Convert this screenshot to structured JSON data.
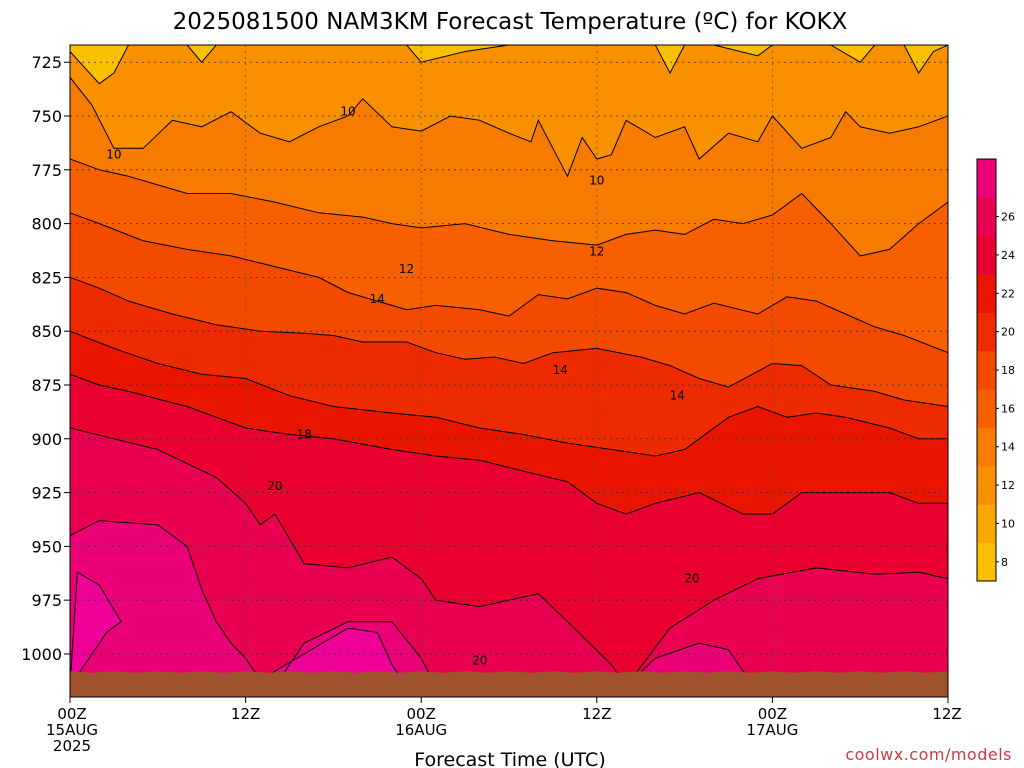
{
  "chart_data": {
    "type": "contour",
    "title": "2025081500 NAM3KM Forecast Temperature (ºC) for KOKX",
    "xlabel": "Forecast Time (UTC)",
    "ylabel": "",
    "x_ticks": [
      {
        "hour": 0,
        "lines": [
          "00Z",
          "15AUG",
          "2025"
        ]
      },
      {
        "hour": 12,
        "lines": [
          "12Z"
        ]
      },
      {
        "hour": 24,
        "lines": [
          "00Z",
          "16AUG"
        ]
      },
      {
        "hour": 36,
        "lines": [
          "12Z"
        ]
      },
      {
        "hour": 48,
        "lines": [
          "00Z",
          "17AUG"
        ]
      },
      {
        "hour": 60,
        "lines": [
          "12Z"
        ]
      }
    ],
    "xlim": [
      0,
      60
    ],
    "y_ticks": [
      725,
      750,
      775,
      800,
      825,
      850,
      875,
      900,
      925,
      950,
      975,
      1000
    ],
    "ylim": [
      717,
      1020
    ],
    "y_axis": "pressure (hPa), inverted",
    "surface_pressure_hPa": 1008,
    "colorbar": {
      "ticks": [
        8,
        10,
        12,
        14,
        16,
        18,
        20,
        22,
        24,
        26
      ],
      "levels": [
        7,
        9,
        11,
        13,
        15,
        17,
        19,
        21,
        23,
        25,
        27,
        29
      ],
      "colors": [
        "#f8c000",
        "#f9a800",
        "#f89000",
        "#f77b00",
        "#f66000",
        "#f34a00",
        "#ee2a00",
        "#ea1500",
        "#ea0030",
        "#ea0050",
        "#ec0078",
        "#ef0098"
      ]
    },
    "contour_labels": [
      {
        "text": "10",
        "hour": 19.0,
        "p": 748
      },
      {
        "text": "10",
        "hour": 3.0,
        "p": 768
      },
      {
        "text": "10",
        "hour": 36.0,
        "p": 780
      },
      {
        "text": "12",
        "hour": 23.0,
        "p": 821
      },
      {
        "text": "12",
        "hour": 36.0,
        "p": 813
      },
      {
        "text": "14",
        "hour": 21.0,
        "p": 835
      },
      {
        "text": "14",
        "hour": 33.5,
        "p": 868
      },
      {
        "text": "14",
        "hour": 41.5,
        "p": 880
      },
      {
        "text": "18",
        "hour": 16.0,
        "p": 898
      },
      {
        "text": "20",
        "hour": 14.0,
        "p": 922
      },
      {
        "text": "20",
        "hour": 42.5,
        "p": 965
      },
      {
        "text": "20",
        "hour": 28.0,
        "p": 1003
      }
    ],
    "grid": true,
    "legend": "right (colorbar)"
  },
  "credit": "coolwx.com/models"
}
